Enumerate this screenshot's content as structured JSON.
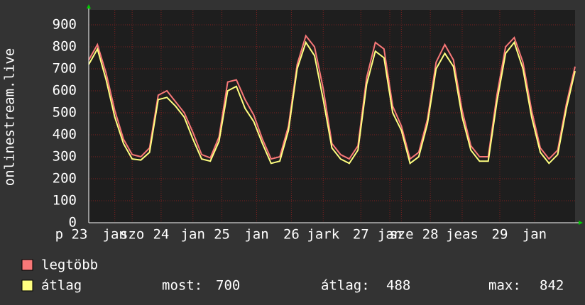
{
  "chart_data": {
    "type": "line",
    "y_label": "onlinestream.live",
    "x": [
      0,
      3,
      6,
      9,
      12,
      15,
      18,
      21,
      24,
      27,
      30,
      33,
      36,
      39,
      42,
      45,
      48,
      51,
      54,
      57,
      60,
      63,
      66,
      69,
      72,
      75,
      78,
      81,
      84,
      87,
      90,
      93,
      96,
      99,
      102,
      105,
      108,
      111,
      114,
      117,
      120,
      123,
      126,
      129,
      132,
      135,
      138,
      141,
      144,
      147,
      150,
      153,
      156,
      159,
      162,
      165,
      168
    ],
    "xlim": [
      0,
      168
    ],
    "xticks": [
      {
        "value": -6,
        "label": "p 23"
      },
      {
        "value": 9,
        "label": "jan"
      },
      {
        "value": 15,
        "label": "szo"
      },
      {
        "value": 25,
        "label": "24"
      },
      {
        "value": 36,
        "label": "jan"
      },
      {
        "value": 46,
        "label": "25"
      },
      {
        "value": 58,
        "label": "jan"
      },
      {
        "value": 70,
        "label": "26"
      },
      {
        "value": 81,
        "label": "jark"
      },
      {
        "value": 94,
        "label": "27"
      },
      {
        "value": 104,
        "label": "jan"
      },
      {
        "value": 108,
        "label": "sze"
      },
      {
        "value": 118,
        "label": "28"
      },
      {
        "value": 129,
        "label": "jeas"
      },
      {
        "value": 142,
        "label": "29"
      },
      {
        "value": 154,
        "label": "jan"
      }
    ],
    "ylim": [
      0,
      900
    ],
    "yticks": [
      0,
      100,
      200,
      300,
      400,
      500,
      600,
      700,
      800,
      900
    ],
    "grid": true,
    "series": [
      {
        "name": "legtöbb",
        "color": "#f87878",
        "values": [
          740,
          810,
          680,
          510,
          380,
          310,
          300,
          340,
          580,
          600,
          550,
          500,
          410,
          310,
          295,
          390,
          640,
          650,
          560,
          490,
          380,
          290,
          300,
          440,
          720,
          850,
          800,
          610,
          360,
          310,
          290,
          350,
          660,
          820,
          790,
          530,
          440,
          290,
          320,
          470,
          730,
          810,
          740,
          510,
          350,
          300,
          300,
          580,
          800,
          842,
          730,
          510,
          340,
          290,
          330,
          540,
          710
        ]
      },
      {
        "name": "átlag",
        "color": "#ffff80",
        "values": [
          720,
          790,
          650,
          480,
          360,
          290,
          285,
          320,
          560,
          570,
          530,
          480,
          380,
          290,
          280,
          370,
          600,
          620,
          520,
          460,
          360,
          270,
          280,
          420,
          700,
          820,
          760,
          560,
          340,
          290,
          270,
          330,
          630,
          780,
          750,
          500,
          420,
          270,
          300,
          450,
          700,
          770,
          710,
          480,
          330,
          280,
          280,
          550,
          770,
          820,
          700,
          480,
          320,
          270,
          310,
          520,
          690
        ]
      }
    ],
    "stats": [
      {
        "label": "most:",
        "value": 700
      },
      {
        "label": "átlag:",
        "value": 488
      },
      {
        "label": "max:",
        "value": 842
      }
    ]
  }
}
